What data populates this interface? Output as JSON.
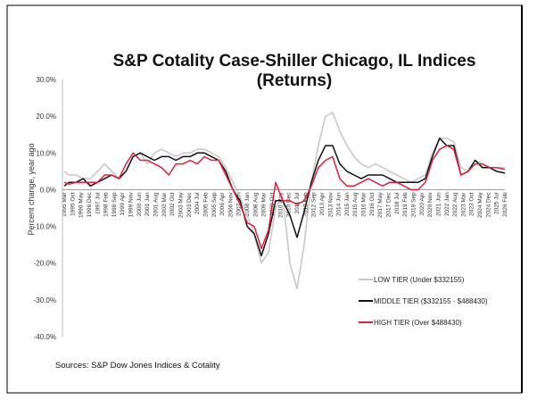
{
  "chart_data": {
    "type": "line",
    "title": [
      "S&P Cotality Case-Shiller Chicago, IL Indices",
      "(Returns)"
    ],
    "ylabel": "Percent change, year ago",
    "xlabel": "",
    "ylim": [
      -40,
      30
    ],
    "yticks": [
      "30.0%",
      "20.0%",
      "10.0%",
      "0.0%",
      "-10.0%",
      "-20.0%",
      "-30.0%",
      "-40.0%"
    ],
    "ytick_values": [
      30,
      20,
      10,
      0,
      -10,
      -20,
      -30,
      -40
    ],
    "xrange": [
      "1995-03",
      "2026-02"
    ],
    "xtick_labels": [
      "1995 Mar",
      "1995 Oct",
      "1996 May",
      "1996 Dec",
      "1997 Jul",
      "1998 Feb",
      "1998 Sep",
      "1999 Apr",
      "1999 Nov",
      "2000 Jun",
      "2001 Jan",
      "2001 Aug",
      "2002 Mar",
      "2002 Oct",
      "2003 May",
      "2003 Dec",
      "2004 Jul",
      "2005 Feb",
      "2005 Sep",
      "2006 Apr",
      "2006 Nov",
      "2007 Jun",
      "2008 Jan",
      "2008 Aug",
      "2009 Mar",
      "2009 Oct",
      "2010 May",
      "2010 Dec",
      "2011 Jul",
      "2012 Feb",
      "2012 Sep",
      "2013 Apr",
      "2013 Nov",
      "2014 Jun",
      "2015 Jan",
      "2015 Aug",
      "2016 Mar",
      "2016 Oct",
      "2017 May",
      "2017 Dec",
      "2018 Jul",
      "2019 Feb",
      "2019 Sep",
      "2020 Apr",
      "2020 Nov",
      "2021 Jun",
      "2022 Jan",
      "2022 Aug",
      "2023 Mar",
      "2023 Oct",
      "2024 May",
      "2024 Dec",
      "2025 Jul",
      "2026 Feb"
    ],
    "grid": false,
    "legend_position": "bottom-right",
    "x": [
      "1995-03",
      "1995-07",
      "1996-01",
      "1996-07",
      "1997-01",
      "1997-07",
      "1998-01",
      "1998-07",
      "1999-01",
      "1999-07",
      "2000-01",
      "2000-07",
      "2001-01",
      "2001-07",
      "2002-01",
      "2002-07",
      "2003-01",
      "2003-07",
      "2004-01",
      "2004-07",
      "2005-01",
      "2005-07",
      "2006-01",
      "2006-07",
      "2007-01",
      "2007-07",
      "2008-01",
      "2008-07",
      "2009-01",
      "2009-07",
      "2010-01",
      "2010-07",
      "2011-01",
      "2011-07",
      "2012-01",
      "2012-07",
      "2013-01",
      "2013-07",
      "2014-01",
      "2014-07",
      "2015-01",
      "2015-07",
      "2016-01",
      "2016-07",
      "2017-01",
      "2017-07",
      "2018-01",
      "2018-07",
      "2019-01",
      "2019-07",
      "2020-01",
      "2020-07",
      "2021-01",
      "2021-07",
      "2022-01",
      "2022-07",
      "2023-01",
      "2023-07",
      "2024-01",
      "2024-07",
      "2025-01",
      "2025-07",
      "2026-02"
    ],
    "series": [
      {
        "name": "LOW TIER (Under $332155)",
        "color": "#c8c8c8",
        "values": [
          5,
          4,
          4,
          3,
          3,
          5,
          7,
          5,
          3,
          5,
          9,
          10,
          7,
          10,
          11,
          10,
          9,
          10,
          10,
          11,
          11,
          10,
          9,
          6,
          2,
          -2,
          -7,
          -12,
          -20,
          -17,
          -5,
          -2,
          -20,
          -27,
          -15,
          2,
          12,
          20,
          21,
          16,
          12,
          9,
          7,
          6,
          7,
          6,
          5,
          4,
          3,
          2,
          3,
          4,
          10,
          14,
          14,
          13,
          6,
          5,
          8,
          7,
          6,
          6,
          6
        ]
      },
      {
        "name": "MIDDLE TIER ($332155 - $488430)",
        "color": "#111111",
        "values": [
          1,
          2,
          2,
          3,
          1,
          2,
          3,
          4,
          3,
          5,
          9,
          10,
          9,
          8,
          9,
          9,
          8,
          9,
          9,
          10,
          10,
          9,
          8,
          5,
          0,
          -3,
          -10,
          -12,
          -18,
          -12,
          -3,
          -3,
          -7,
          -13,
          -6,
          2,
          8,
          12,
          12,
          7,
          5,
          4,
          3,
          4,
          4,
          4,
          3,
          2,
          2,
          2,
          2,
          3,
          9,
          14,
          12,
          12,
          4,
          5,
          8,
          6,
          6,
          5,
          4.5
        ]
      },
      {
        "name": "HIGH TIER (Over $488430)",
        "color": "#e0203c",
        "values": [
          2,
          1.5,
          2,
          2,
          2,
          2,
          4,
          4,
          3,
          7,
          10,
          8,
          8,
          7,
          6,
          4,
          7,
          7,
          8,
          7,
          9,
          8,
          8,
          4,
          0,
          -4,
          -9,
          -10,
          -16,
          -11,
          2,
          -3,
          -3,
          -4,
          -3,
          1,
          6,
          8,
          9,
          3,
          1,
          1,
          2,
          3,
          2,
          1,
          2,
          2,
          1,
          0,
          0,
          2,
          8,
          11,
          12,
          11,
          4,
          5,
          7,
          7,
          6,
          6,
          5.5
        ]
      }
    ]
  },
  "source": "Sources: S&P Dow Jones Indices & Cotality"
}
